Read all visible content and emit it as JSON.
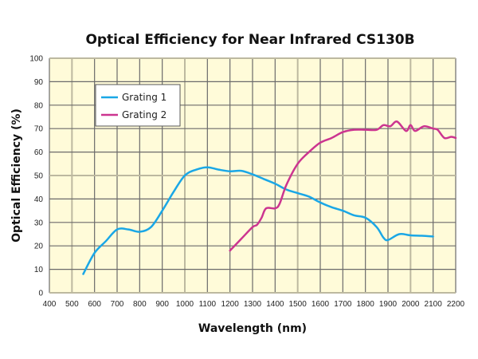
{
  "chart_data": {
    "type": "line",
    "title": "Optical Efficiency for Near Infrared CS130B",
    "xlabel": "Wavelength (nm)",
    "ylabel": "Optical Efficiency (%)",
    "xlim": [
      400,
      2200
    ],
    "ylim": [
      0,
      100
    ],
    "xticks": [
      "400",
      "500",
      "600",
      "700",
      "800",
      "900",
      "1000",
      "1100",
      "1200",
      "1300",
      "1400",
      "1500",
      "1600",
      "1700",
      "1800",
      "1900",
      "2000",
      "2100",
      "2200"
    ],
    "yticks": [
      "0",
      "10",
      "20",
      "30",
      "40",
      "50",
      "60",
      "70",
      "80",
      "90",
      "100"
    ],
    "grid": true,
    "background_color": "#FFFBD9",
    "legend_position": "top-left",
    "series": [
      {
        "name": "Grating 1",
        "color": "#1AA7E6",
        "x": [
          550,
          600,
          650,
          700,
          750,
          800,
          850,
          900,
          950,
          1000,
          1050,
          1100,
          1150,
          1200,
          1250,
          1300,
          1350,
          1400,
          1450,
          1500,
          1550,
          1600,
          1650,
          1700,
          1750,
          1800,
          1850,
          1880,
          1900,
          1950,
          2000,
          2050,
          2100
        ],
        "y": [
          8,
          17,
          22,
          27,
          27,
          26,
          28,
          35,
          43,
          50,
          52.5,
          53.5,
          52.5,
          51.8,
          52,
          50.5,
          48.5,
          46.5,
          44,
          42.5,
          41,
          38.5,
          36.5,
          35,
          33,
          32,
          28,
          23.5,
          22.5,
          25,
          24.5,
          24.3,
          24
        ]
      },
      {
        "name": "Grating 2",
        "color": "#CC3590",
        "x": [
          1200,
          1250,
          1300,
          1320,
          1340,
          1360,
          1400,
          1420,
          1450,
          1500,
          1550,
          1600,
          1650,
          1700,
          1750,
          1800,
          1850,
          1880,
          1910,
          1940,
          1980,
          2000,
          2020,
          2060,
          2100,
          2120,
          2150,
          2180,
          2200
        ],
        "y": [
          18,
          23,
          28,
          29,
          32,
          36,
          36,
          38,
          46,
          55,
          60,
          64,
          66,
          68.5,
          69.5,
          69.5,
          69.5,
          71.5,
          71,
          73,
          69,
          71.5,
          69,
          71,
          70,
          69.5,
          66,
          66.5,
          66
        ]
      }
    ]
  }
}
